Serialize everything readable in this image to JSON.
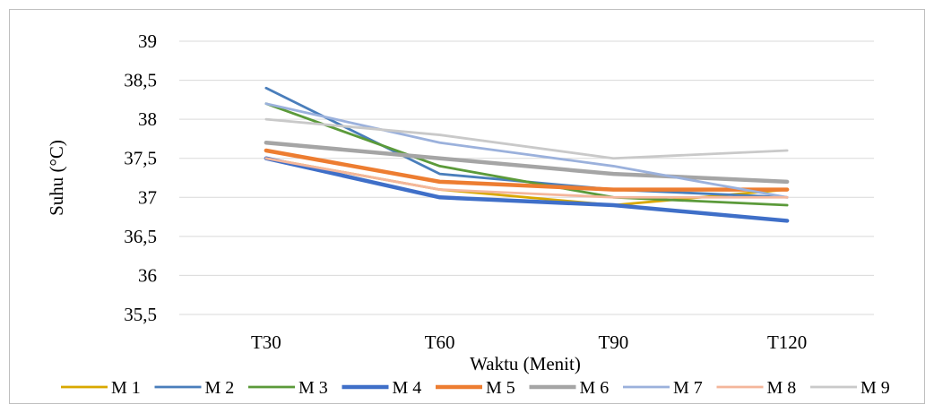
{
  "chart_data": {
    "type": "line",
    "title": "",
    "xlabel": "Waktu (Menit)",
    "ylabel": "Suhu (°C)",
    "categories": [
      "T30",
      "T60",
      "T90",
      "T120"
    ],
    "ylim": [
      35.5,
      39
    ],
    "yticks": [
      "35,5",
      "36",
      "36,5",
      "37",
      "37,5",
      "38",
      "38,5",
      "39"
    ],
    "grid": true,
    "legend_position": "bottom",
    "series": [
      {
        "name": "M 1",
        "color": "#d9a800",
        "values": [
          37.5,
          37.1,
          36.9,
          37.1
        ]
      },
      {
        "name": "M 2",
        "color": "#4a7ebb",
        "values": [
          38.4,
          37.3,
          37.1,
          37.0
        ]
      },
      {
        "name": "M 3",
        "color": "#5b9a3a",
        "values": [
          38.2,
          37.4,
          37.0,
          36.9
        ]
      },
      {
        "name": "M 4",
        "color": "#3f6fc8",
        "values": [
          37.5,
          37.0,
          36.9,
          36.7
        ]
      },
      {
        "name": "M 5",
        "color": "#ed7d31",
        "values": [
          37.6,
          37.2,
          37.1,
          37.1
        ]
      },
      {
        "name": "M 6",
        "color": "#a5a5a5",
        "values": [
          37.7,
          37.5,
          37.3,
          37.2
        ]
      },
      {
        "name": "M 7",
        "color": "#9bb1dc",
        "values": [
          38.2,
          37.7,
          37.4,
          37.0
        ]
      },
      {
        "name": "M 8",
        "color": "#f4b69b",
        "values": [
          37.5,
          37.1,
          37.0,
          37.0
        ]
      },
      {
        "name": "M 9",
        "color": "#c9c9c9",
        "values": [
          38.0,
          37.8,
          37.5,
          37.6
        ]
      }
    ]
  }
}
